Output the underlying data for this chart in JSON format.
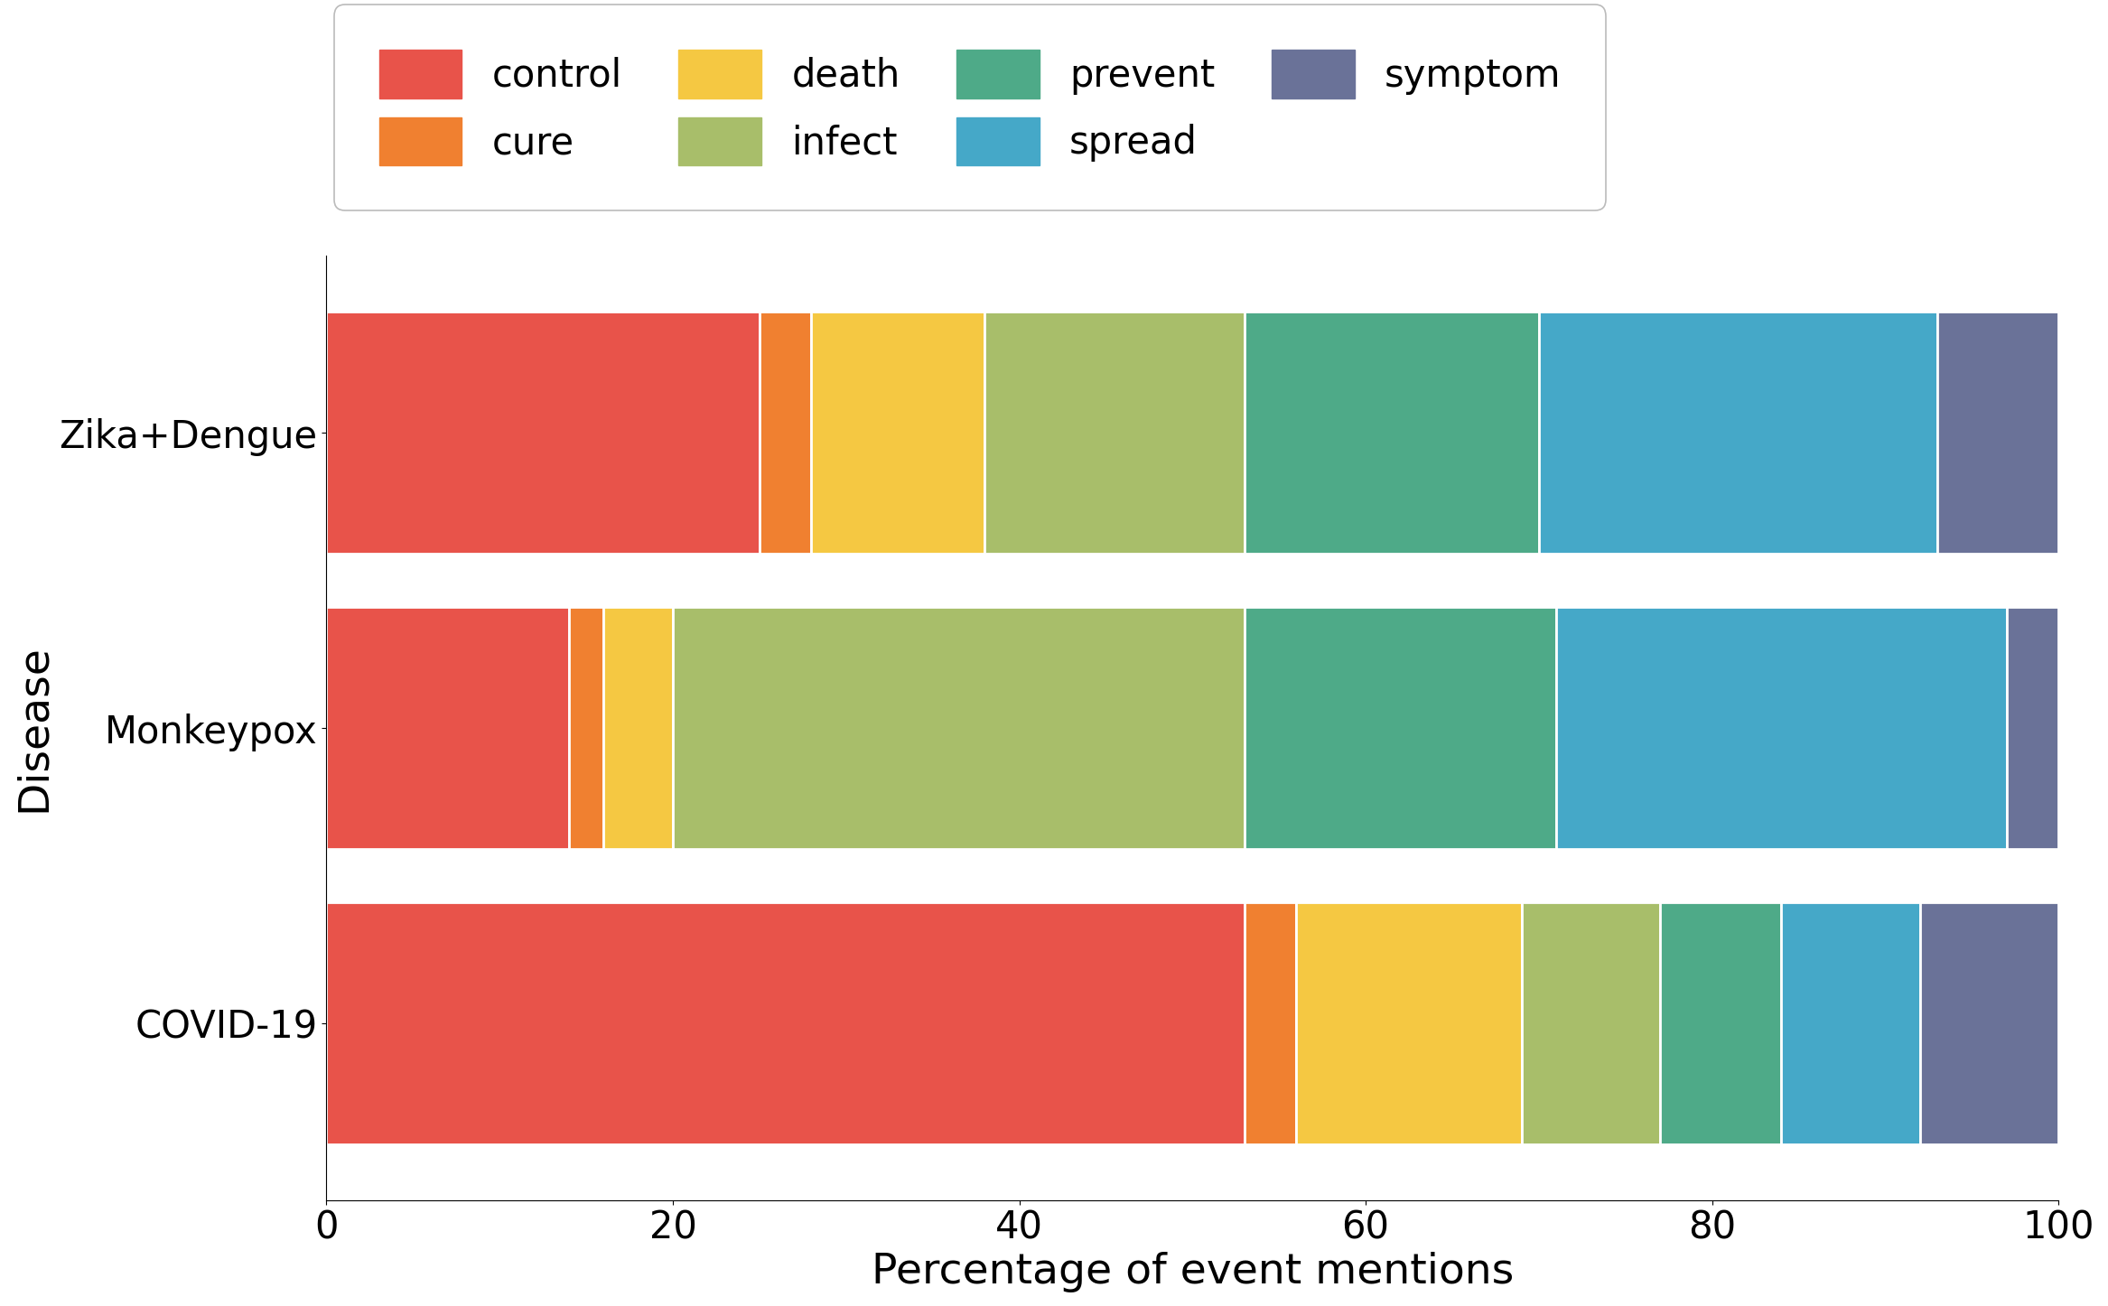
{
  "diseases": [
    "COVID-19",
    "Monkeypox",
    "Zika+Dengue"
  ],
  "categories": [
    "control",
    "cure",
    "death",
    "infect",
    "prevent",
    "spread",
    "symptom"
  ],
  "colors": {
    "control": "#E8534A",
    "cure": "#F08030",
    "death": "#F5C842",
    "infect": "#A8BE6A",
    "prevent": "#4EAA88",
    "spread": "#45A8C8",
    "symptom": "#6A7298"
  },
  "data": {
    "COVID-19": {
      "control": 53.0,
      "cure": 3.0,
      "death": 13.0,
      "infect": 8.0,
      "prevent": 7.0,
      "spread": 8.0,
      "symptom": 8.0
    },
    "Monkeypox": {
      "control": 14.0,
      "cure": 2.0,
      "death": 4.0,
      "infect": 33.0,
      "prevent": 18.0,
      "spread": 26.0,
      "symptom": 3.0
    },
    "Zika+Dengue": {
      "control": 25.0,
      "cure": 3.0,
      "death": 10.0,
      "infect": 15.0,
      "prevent": 17.0,
      "spread": 23.0,
      "symptom": 7.0
    }
  },
  "xlabel": "Percentage of event mentions",
  "ylabel": "Disease",
  "xlim": [
    0,
    100
  ],
  "bar_height": 0.82,
  "figsize": [
    23.34,
    14.46
  ],
  "dpi": 100,
  "label_fontsize": 34,
  "tick_fontsize": 30,
  "legend_fontsize": 30,
  "legend_ncol": 4,
  "background_color": "#ffffff",
  "edgecolor": "white",
  "linewidth": 2.0
}
